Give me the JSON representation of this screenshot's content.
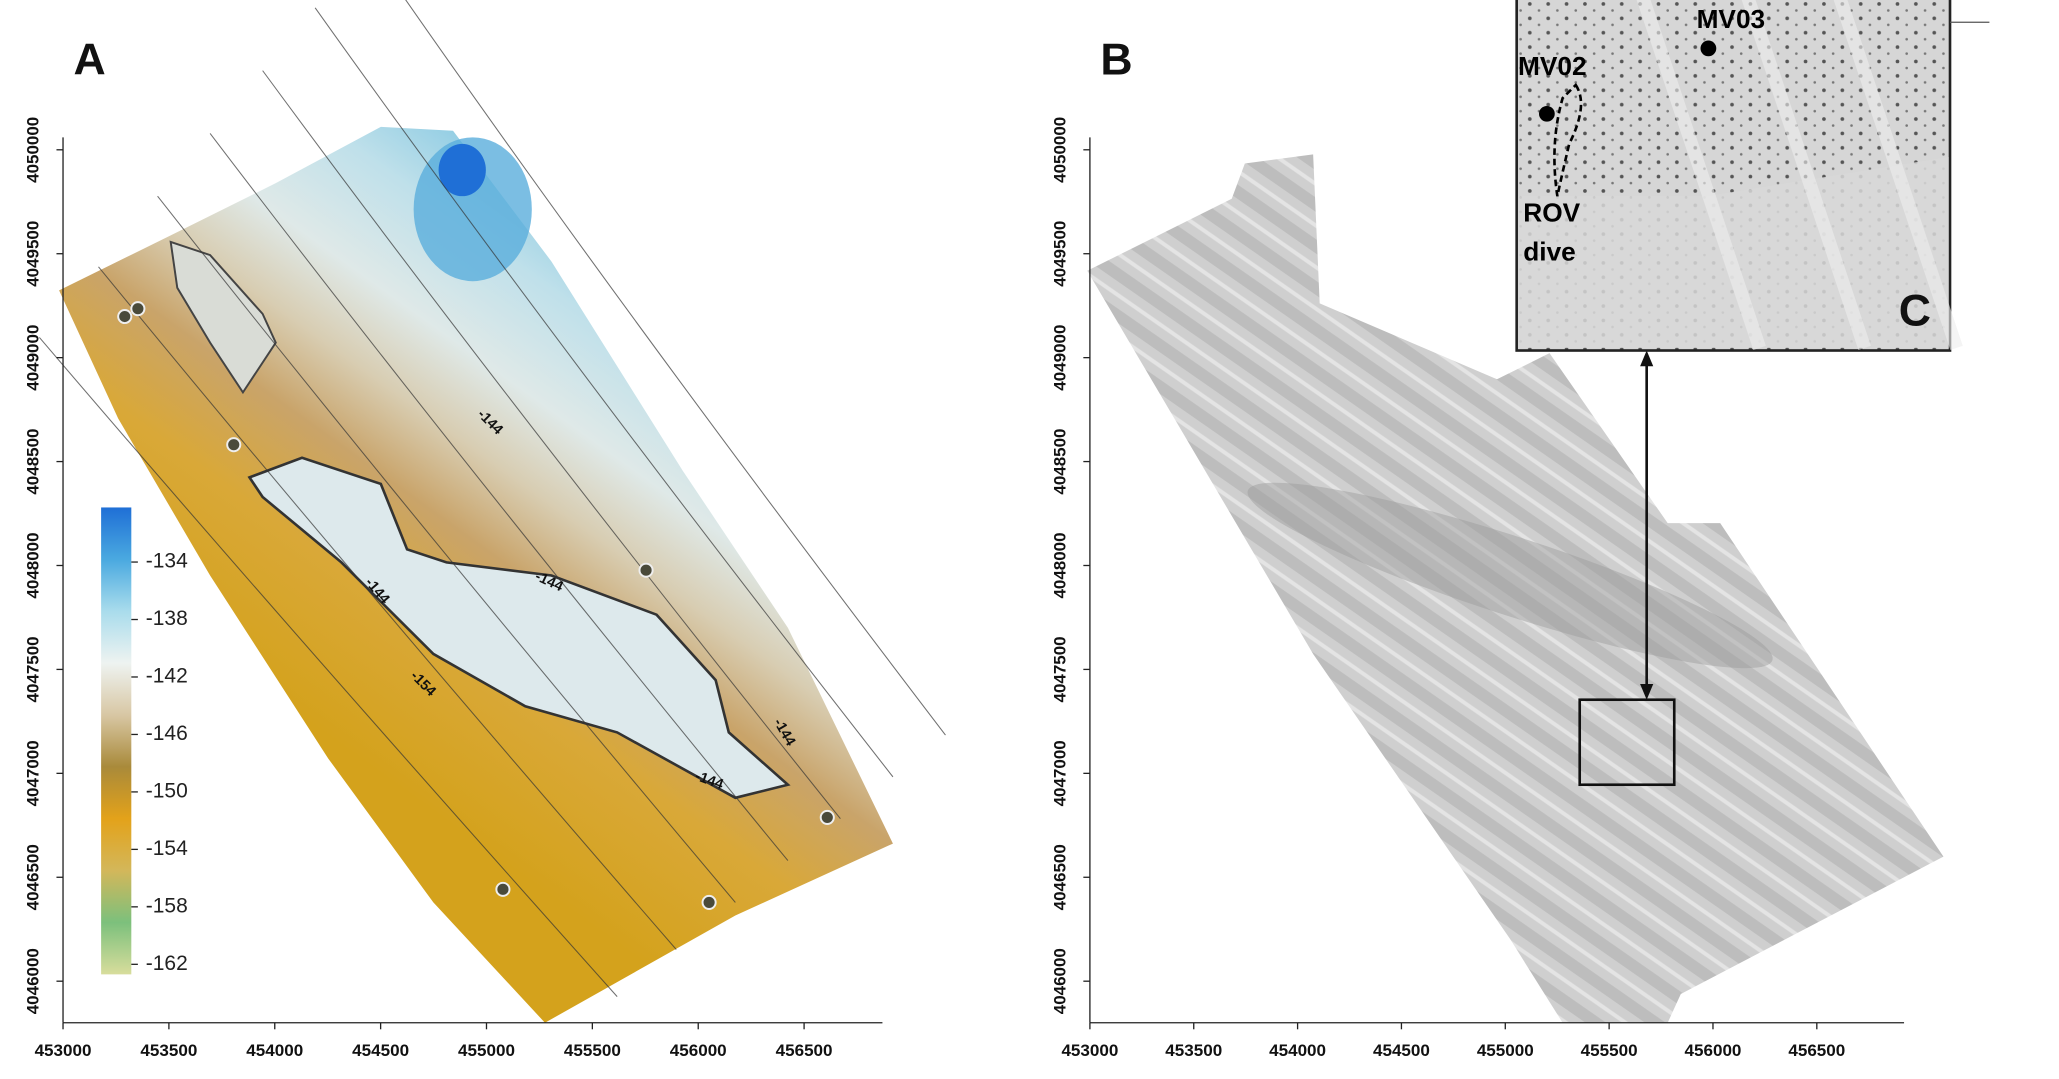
{
  "chart_data": [
    {
      "type": "map",
      "panel_label": "A",
      "xlim": [
        453000,
        456870
      ],
      "ylim": [
        4045800,
        4050060
      ],
      "xticks": [
        453000,
        453500,
        454000,
        454500,
        455000,
        455500,
        456000,
        456500
      ],
      "yticks": [
        4046000,
        4046500,
        4047000,
        4047500,
        4048000,
        4048500,
        4049000,
        4049500,
        4050000
      ],
      "colorbar": {
        "lim": [
          -130.2,
          -162.7
        ],
        "ticks": [
          -134,
          -138,
          -142,
          -146,
          -150,
          -154,
          -158,
          -162
        ],
        "colors": [
          "#1f6fd6",
          "#4aa9e0",
          "#a9dcec",
          "#eef3f1",
          "#d8c7a4",
          "#a98a3a",
          "#e3a21a",
          "#d3b75a",
          "#7cc07c",
          "#d8dd9c"
        ]
      },
      "contour_labels": [
        -144,
        -144,
        -144,
        -144,
        -144,
        -154
      ]
    },
    {
      "type": "map",
      "panel_label": "B",
      "xlim": [
        453000,
        456920
      ],
      "ylim": [
        4045800,
        4050060
      ],
      "xticks": [
        453000,
        453500,
        454000,
        454500,
        455000,
        455500,
        456000,
        456500
      ],
      "yticks": [
        4046000,
        4046500,
        4047000,
        4047500,
        4048000,
        4048500,
        4049000,
        4049500,
        4050000
      ],
      "inset": {
        "label": "C",
        "sites": [
          "MV03",
          "MV02"
        ],
        "dive": [
          "ROV",
          "dive"
        ]
      }
    }
  ]
}
